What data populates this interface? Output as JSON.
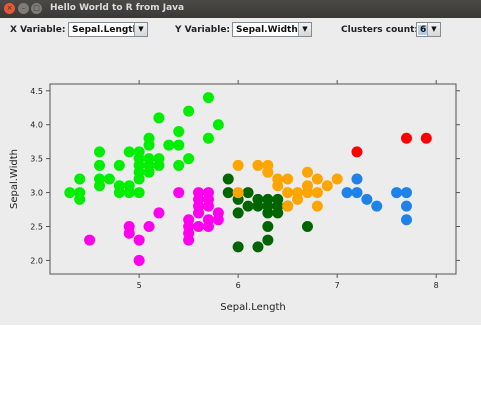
{
  "window": {
    "title": "Hello World to R from Java",
    "buttons": {
      "close": "×",
      "minimize": "–",
      "maximize": "□"
    }
  },
  "controls": {
    "x_variable": {
      "label": "X Variable:",
      "value": "Sepal.Length"
    },
    "y_variable": {
      "label": "Y Variable:",
      "value": "Sepal.Width"
    },
    "clusters": {
      "label": "Clusters count:",
      "value": "6"
    },
    "dropdown_arrow": "▼"
  },
  "chart_data": {
    "type": "scatter",
    "xlabel": "Sepal.Length",
    "ylabel": "Sepal.Width",
    "xlim": [
      4.1,
      8.2
    ],
    "ylim": [
      1.8,
      4.6
    ],
    "xticks": [
      5,
      6,
      7,
      8
    ],
    "yticks": [
      2.0,
      2.5,
      3.0,
      3.5,
      4.0,
      4.5
    ],
    "series": [
      {
        "color": "#00ee00",
        "points": [
          [
            4.3,
            3.0
          ],
          [
            4.4,
            3.0
          ],
          [
            4.4,
            2.9
          ],
          [
            4.4,
            3.2
          ],
          [
            4.6,
            3.1
          ],
          [
            4.6,
            3.2
          ],
          [
            4.6,
            3.4
          ],
          [
            4.6,
            3.6
          ],
          [
            4.7,
            3.2
          ],
          [
            4.8,
            3.0
          ],
          [
            4.8,
            3.1
          ],
          [
            4.8,
            3.4
          ],
          [
            4.9,
            3.0
          ],
          [
            4.9,
            3.1
          ],
          [
            4.9,
            3.6
          ],
          [
            5.0,
            3.0
          ],
          [
            5.0,
            3.2
          ],
          [
            5.0,
            3.3
          ],
          [
            5.0,
            3.4
          ],
          [
            5.0,
            3.5
          ],
          [
            5.0,
            3.6
          ],
          [
            5.1,
            3.3
          ],
          [
            5.1,
            3.4
          ],
          [
            5.1,
            3.5
          ],
          [
            5.1,
            3.7
          ],
          [
            5.1,
            3.8
          ],
          [
            5.2,
            3.4
          ],
          [
            5.2,
            3.5
          ],
          [
            5.2,
            4.1
          ],
          [
            5.3,
            3.7
          ],
          [
            5.4,
            3.4
          ],
          [
            5.4,
            3.7
          ],
          [
            5.4,
            3.9
          ],
          [
            5.5,
            3.5
          ],
          [
            5.5,
            4.2
          ],
          [
            5.7,
            3.8
          ],
          [
            5.7,
            4.4
          ],
          [
            5.8,
            4.0
          ]
        ]
      },
      {
        "color": "#ff00ee",
        "points": [
          [
            4.5,
            2.3
          ],
          [
            4.9,
            2.4
          ],
          [
            4.9,
            2.5
          ],
          [
            5.0,
            2.0
          ],
          [
            5.0,
            2.3
          ],
          [
            5.1,
            2.5
          ],
          [
            5.2,
            2.7
          ],
          [
            5.4,
            3.0
          ],
          [
            5.5,
            2.3
          ],
          [
            5.5,
            2.4
          ],
          [
            5.5,
            2.5
          ],
          [
            5.5,
            2.6
          ],
          [
            5.6,
            2.5
          ],
          [
            5.6,
            2.7
          ],
          [
            5.6,
            2.8
          ],
          [
            5.6,
            2.9
          ],
          [
            5.6,
            3.0
          ],
          [
            5.7,
            2.5
          ],
          [
            5.7,
            2.6
          ],
          [
            5.7,
            2.8
          ],
          [
            5.7,
            2.9
          ],
          [
            5.7,
            3.0
          ],
          [
            5.8,
            2.6
          ],
          [
            5.8,
            2.7
          ]
        ]
      },
      {
        "color": "#006400",
        "points": [
          [
            5.9,
            3.0
          ],
          [
            5.9,
            3.2
          ],
          [
            6.0,
            2.2
          ],
          [
            6.0,
            2.7
          ],
          [
            6.0,
            2.9
          ],
          [
            6.1,
            2.8
          ],
          [
            6.1,
            3.0
          ],
          [
            6.2,
            2.2
          ],
          [
            6.2,
            2.8
          ],
          [
            6.2,
            2.9
          ],
          [
            6.3,
            2.3
          ],
          [
            6.3,
            2.5
          ],
          [
            6.3,
            2.7
          ],
          [
            6.3,
            2.8
          ],
          [
            6.3,
            2.9
          ],
          [
            6.4,
            2.7
          ],
          [
            6.4,
            2.8
          ],
          [
            6.4,
            2.9
          ],
          [
            6.5,
            2.8
          ],
          [
            6.7,
            2.5
          ]
        ]
      },
      {
        "color": "#ffa500",
        "points": [
          [
            6.0,
            3.4
          ],
          [
            6.0,
            3.0
          ],
          [
            6.2,
            3.4
          ],
          [
            6.3,
            3.3
          ],
          [
            6.4,
            3.1
          ],
          [
            6.4,
            3.2
          ],
          [
            6.5,
            3.0
          ],
          [
            6.5,
            3.2
          ],
          [
            6.6,
            2.9
          ],
          [
            6.6,
            3.0
          ],
          [
            6.7,
            3.0
          ],
          [
            6.7,
            3.1
          ],
          [
            6.7,
            3.3
          ],
          [
            6.8,
            2.8
          ],
          [
            6.8,
            3.0
          ],
          [
            6.8,
            3.2
          ],
          [
            6.9,
            3.1
          ],
          [
            7.0,
            3.2
          ],
          [
            6.5,
            2.8
          ],
          [
            6.3,
            3.4
          ]
        ]
      },
      {
        "color": "#1e82e8",
        "points": [
          [
            7.1,
            3.0
          ],
          [
            7.2,
            3.0
          ],
          [
            7.2,
            3.2
          ],
          [
            7.3,
            2.9
          ],
          [
            7.4,
            2.8
          ],
          [
            7.6,
            3.0
          ],
          [
            7.7,
            2.6
          ],
          [
            7.7,
            2.8
          ],
          [
            7.7,
            3.0
          ]
        ]
      },
      {
        "color": "#ff0000",
        "points": [
          [
            7.2,
            3.6
          ],
          [
            7.7,
            3.8
          ],
          [
            7.9,
            3.8
          ]
        ]
      }
    ]
  }
}
